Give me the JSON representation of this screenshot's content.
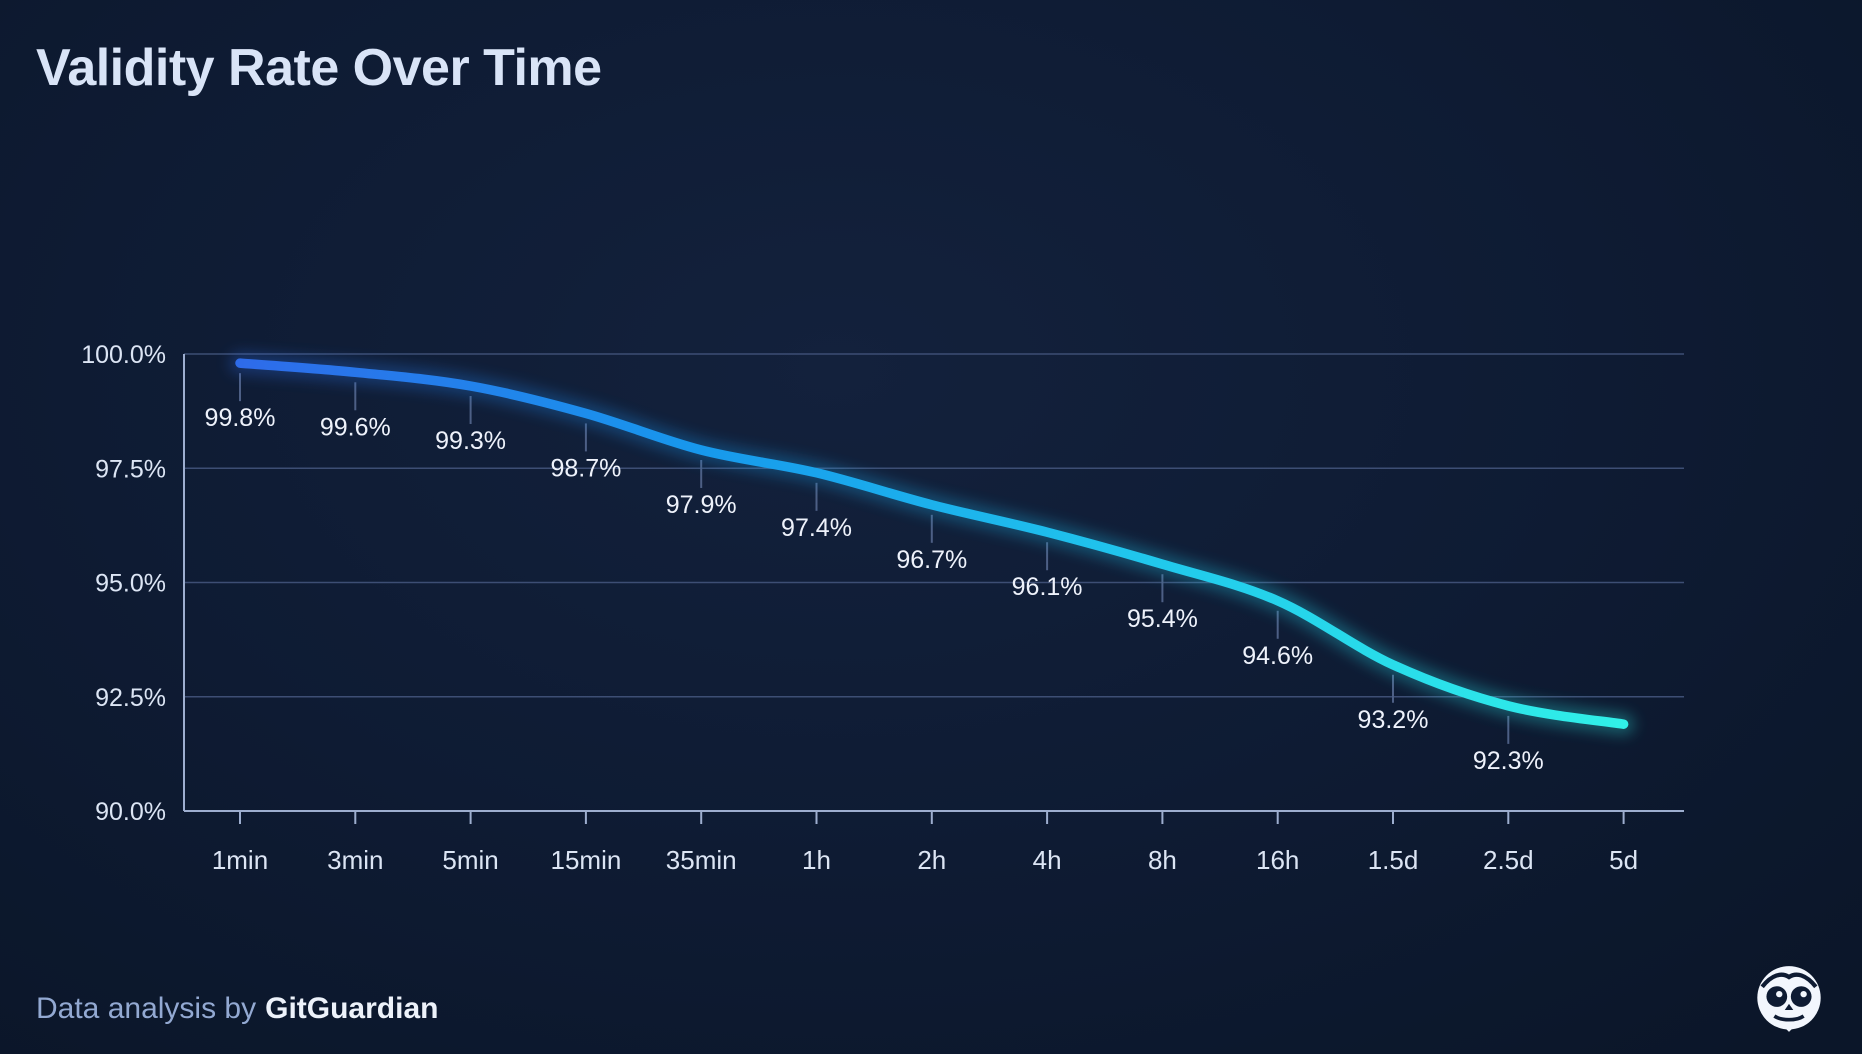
{
  "title": "Validity Rate Over Time",
  "footer": {
    "prefix": "Data analysis by",
    "brand": "GitGuardian"
  },
  "logo": {
    "name": "gitguardian-owl-logo"
  },
  "chart_data": {
    "type": "line",
    "title": "Validity Rate Over Time",
    "categories": [
      "1min",
      "3min",
      "5min",
      "15min",
      "35min",
      "1h",
      "2h",
      "4h",
      "8h",
      "16h",
      "1.5d",
      "2.5d",
      "5d"
    ],
    "values": [
      99.8,
      99.6,
      99.3,
      98.7,
      97.9,
      97.4,
      96.7,
      96.1,
      95.4,
      94.6,
      93.2,
      92.3,
      91.9
    ],
    "point_labels": [
      "99.8%",
      "99.6%",
      "99.3%",
      "98.7%",
      "97.9%",
      "97.4%",
      "96.7%",
      "96.1%",
      "95.4%",
      "94.6%",
      "93.2%",
      "92.3%",
      ""
    ],
    "xlabel": "",
    "ylabel": "",
    "ylim": [
      90,
      100
    ],
    "yticks": [
      100,
      97.5,
      95,
      92.5,
      90
    ],
    "ytick_labels": [
      "100.0%",
      "97.5%",
      "95.0%",
      "92.5%",
      "90.0%"
    ],
    "grid": true,
    "legend": "none",
    "colors": {
      "background": "#0e1b33",
      "grid": "#3d4e74",
      "axis": "#9daecf",
      "tick_label": "#dce5f4",
      "point_label": "#eef2fb",
      "leader": "#4d5f85",
      "line_gradient": [
        "#2e6bea",
        "#1798ec",
        "#21c9ec",
        "#31f0e8"
      ]
    }
  }
}
